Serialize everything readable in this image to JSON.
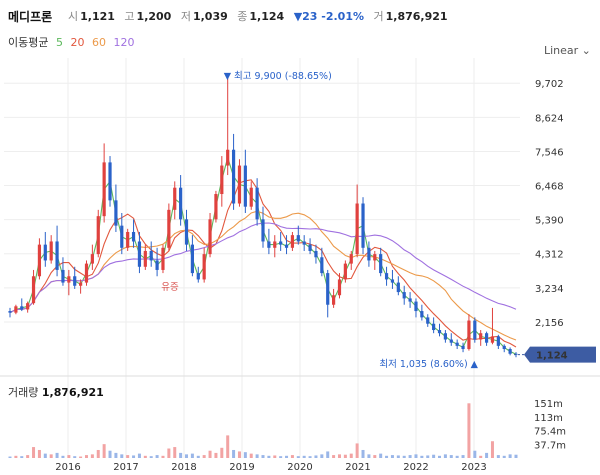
{
  "header": {
    "name": "메디프론",
    "quote": [
      {
        "label": "시",
        "value": "1,121"
      },
      {
        "label": "고",
        "value": "1,200"
      },
      {
        "label": "저",
        "value": "1,039"
      },
      {
        "label": "종",
        "value": "1,124"
      }
    ],
    "change": "▼23 -2.01%",
    "volume_label": "거",
    "volume_value": "1,876,921"
  },
  "moving_avg": {
    "label": "이동평균",
    "periods": [
      {
        "text": "5",
        "color": "#5cb85c"
      },
      {
        "text": "20",
        "color": "#e2583e"
      },
      {
        "text": "60",
        "color": "#ec9a4a"
      },
      {
        "text": "120",
        "color": "#a071e0"
      }
    ]
  },
  "scale_toggle": "Linear ⌄",
  "colors": {
    "up": "#e0413e",
    "down": "#2a62c9",
    "current_tag": "#3d5ca3"
  },
  "chart_data": {
    "type": "candlestick",
    "y_ticks": [
      "9,702",
      "8,624",
      "7,546",
      "6,468",
      "5,390",
      "4,312",
      "3,234",
      "2,156"
    ],
    "y_tick_values": [
      9702,
      8624,
      7546,
      6468,
      5390,
      4312,
      3234,
      2156
    ],
    "x_ticks": [
      "2016",
      "2017",
      "2018",
      "2019",
      "2020",
      "2021",
      "2022",
      "2023"
    ],
    "ylim": [
      700,
      10500
    ],
    "current_price": {
      "label": "1,124",
      "value": 1124
    },
    "high_annotation": {
      "text": "▼ 최고 9,900 (-88.65%)",
      "value": 9900
    },
    "low_annotation": {
      "text": "최저 1,035 (8.60%) ▲",
      "value": 1035
    },
    "event_label": "유증",
    "ohlc_weekly_sampled": [
      [
        2500,
        2600,
        2300,
        2450
      ],
      [
        2450,
        2700,
        2400,
        2650
      ],
      [
        2650,
        2900,
        2500,
        2550
      ],
      [
        2550,
        2800,
        2450,
        2750
      ],
      [
        2750,
        3800,
        2700,
        3600
      ],
      [
        3600,
        4800,
        3500,
        4600
      ],
      [
        4600,
        5000,
        3900,
        4100
      ],
      [
        4100,
        4900,
        4000,
        4700
      ],
      [
        4700,
        5200,
        3600,
        3800
      ],
      [
        3800,
        4200,
        3300,
        3400
      ],
      [
        3400,
        3800,
        3000,
        3600
      ],
      [
        3600,
        3900,
        3200,
        3300
      ],
      [
        3300,
        3500,
        3050,
        3400
      ],
      [
        3400,
        4100,
        3300,
        4000
      ],
      [
        4000,
        4600,
        3800,
        4300
      ],
      [
        4300,
        5700,
        4200,
        5500
      ],
      [
        5500,
        7800,
        5300,
        7200
      ],
      [
        7200,
        7400,
        5800,
        6000
      ],
      [
        6000,
        6500,
        5000,
        5200
      ],
      [
        5200,
        5600,
        4300,
        4500
      ],
      [
        4500,
        5100,
        4400,
        5000
      ],
      [
        5000,
        5400,
        4500,
        4700
      ],
      [
        4700,
        5000,
        3700,
        3900
      ],
      [
        3900,
        4600,
        3800,
        4400
      ],
      [
        4400,
        4700,
        3900,
        4100
      ],
      [
        4100,
        4500,
        3600,
        3800
      ],
      [
        3800,
        4600,
        3700,
        4500
      ],
      [
        4500,
        5900,
        4400,
        5700
      ],
      [
        5700,
        6600,
        5400,
        6400
      ],
      [
        6400,
        6800,
        5200,
        5400
      ],
      [
        5400,
        5700,
        4400,
        4600
      ],
      [
        4600,
        4900,
        3600,
        3700
      ],
      [
        3700,
        3900,
        3400,
        3500
      ],
      [
        3500,
        4500,
        3400,
        4300
      ],
      [
        4300,
        5600,
        4200,
        5400
      ],
      [
        5400,
        6300,
        5300,
        6200
      ],
      [
        6200,
        7400,
        5800,
        7100
      ],
      [
        7100,
        9900,
        6800,
        7600
      ],
      [
        7600,
        8100,
        5700,
        5900
      ],
      [
        5900,
        7300,
        5800,
        7100
      ],
      [
        7100,
        7600,
        5600,
        5800
      ],
      [
        5800,
        6600,
        5700,
        6400
      ],
      [
        6400,
        6700,
        5200,
        5400
      ],
      [
        5400,
        5800,
        4500,
        4700
      ],
      [
        4700,
        5100,
        4300,
        4500
      ],
      [
        4500,
        4900,
        4200,
        4700
      ],
      [
        4700,
        5000,
        4400,
        4600
      ],
      [
        4600,
        4900,
        4300,
        4500
      ],
      [
        4500,
        5000,
        4400,
        4900
      ],
      [
        4900,
        5200,
        4600,
        4700
      ],
      [
        4700,
        4900,
        4400,
        4600
      ],
      [
        4600,
        4800,
        4300,
        4400
      ],
      [
        4400,
        4600,
        4000,
        4200
      ],
      [
        4200,
        4500,
        3600,
        3700
      ],
      [
        3700,
        3800,
        2300,
        2700
      ],
      [
        2700,
        3200,
        2600,
        3000
      ],
      [
        3000,
        3700,
        2900,
        3500
      ],
      [
        3500,
        4100,
        3400,
        4000
      ],
      [
        4000,
        4400,
        3800,
        4300
      ],
      [
        4300,
        6500,
        4200,
        5900
      ],
      [
        5900,
        6100,
        4300,
        4500
      ],
      [
        4500,
        4700,
        3900,
        4100
      ],
      [
        4100,
        4400,
        3800,
        4300
      ],
      [
        4300,
        4500,
        3600,
        3700
      ],
      [
        3700,
        3900,
        3300,
        3500
      ],
      [
        3500,
        3800,
        3200,
        3400
      ],
      [
        3400,
        3600,
        3000,
        3100
      ],
      [
        3100,
        3300,
        2700,
        2900
      ],
      [
        2900,
        3100,
        2600,
        2800
      ],
      [
        2800,
        2900,
        2300,
        2500
      ],
      [
        2500,
        2700,
        2200,
        2300
      ],
      [
        2300,
        2400,
        2000,
        2100
      ],
      [
        2100,
        2300,
        1800,
        1900
      ],
      [
        1900,
        2100,
        1700,
        1800
      ],
      [
        1800,
        1900,
        1500,
        1600
      ],
      [
        1600,
        1800,
        1400,
        1500
      ],
      [
        1500,
        1600,
        1300,
        1400
      ],
      [
        1400,
        1500,
        1200,
        1300
      ],
      [
        1300,
        2400,
        1250,
        2200
      ],
      [
        2200,
        2300,
        1500,
        1600
      ],
      [
        1600,
        1900,
        1400,
        1800
      ],
      [
        1800,
        1850,
        1400,
        1500
      ],
      [
        1500,
        2600,
        1450,
        1700
      ],
      [
        1700,
        1750,
        1300,
        1400
      ],
      [
        1400,
        1450,
        1200,
        1300
      ],
      [
        1300,
        1350,
        1100,
        1150
      ],
      [
        1150,
        1200,
        1039,
        1124
      ]
    ]
  },
  "volume": {
    "title": "거래량",
    "value": "1,876,921",
    "y_ticks": [
      "151m",
      "113m",
      "75.4m",
      "37.7m"
    ],
    "y_tick_values": [
      151,
      113,
      75.4,
      37.7
    ],
    "ylim_m": [
      0,
      170
    ],
    "values_m": [
      4,
      6,
      5,
      8,
      30,
      22,
      12,
      10,
      14,
      6,
      8,
      5,
      4,
      8,
      10,
      22,
      38,
      20,
      14,
      10,
      8,
      7,
      12,
      6,
      5,
      8,
      6,
      26,
      30,
      14,
      10,
      12,
      6,
      8,
      20,
      14,
      28,
      62,
      22,
      18,
      16,
      12,
      10,
      8,
      6,
      7,
      5,
      6,
      8,
      5,
      6,
      5,
      7,
      10,
      18,
      8,
      10,
      9,
      12,
      40,
      22,
      10,
      8,
      12,
      6,
      8,
      7,
      6,
      8,
      10,
      6,
      7,
      9,
      6,
      10,
      8,
      6,
      8,
      150,
      20,
      6,
      14,
      46,
      8,
      6,
      10,
      9
    ]
  }
}
